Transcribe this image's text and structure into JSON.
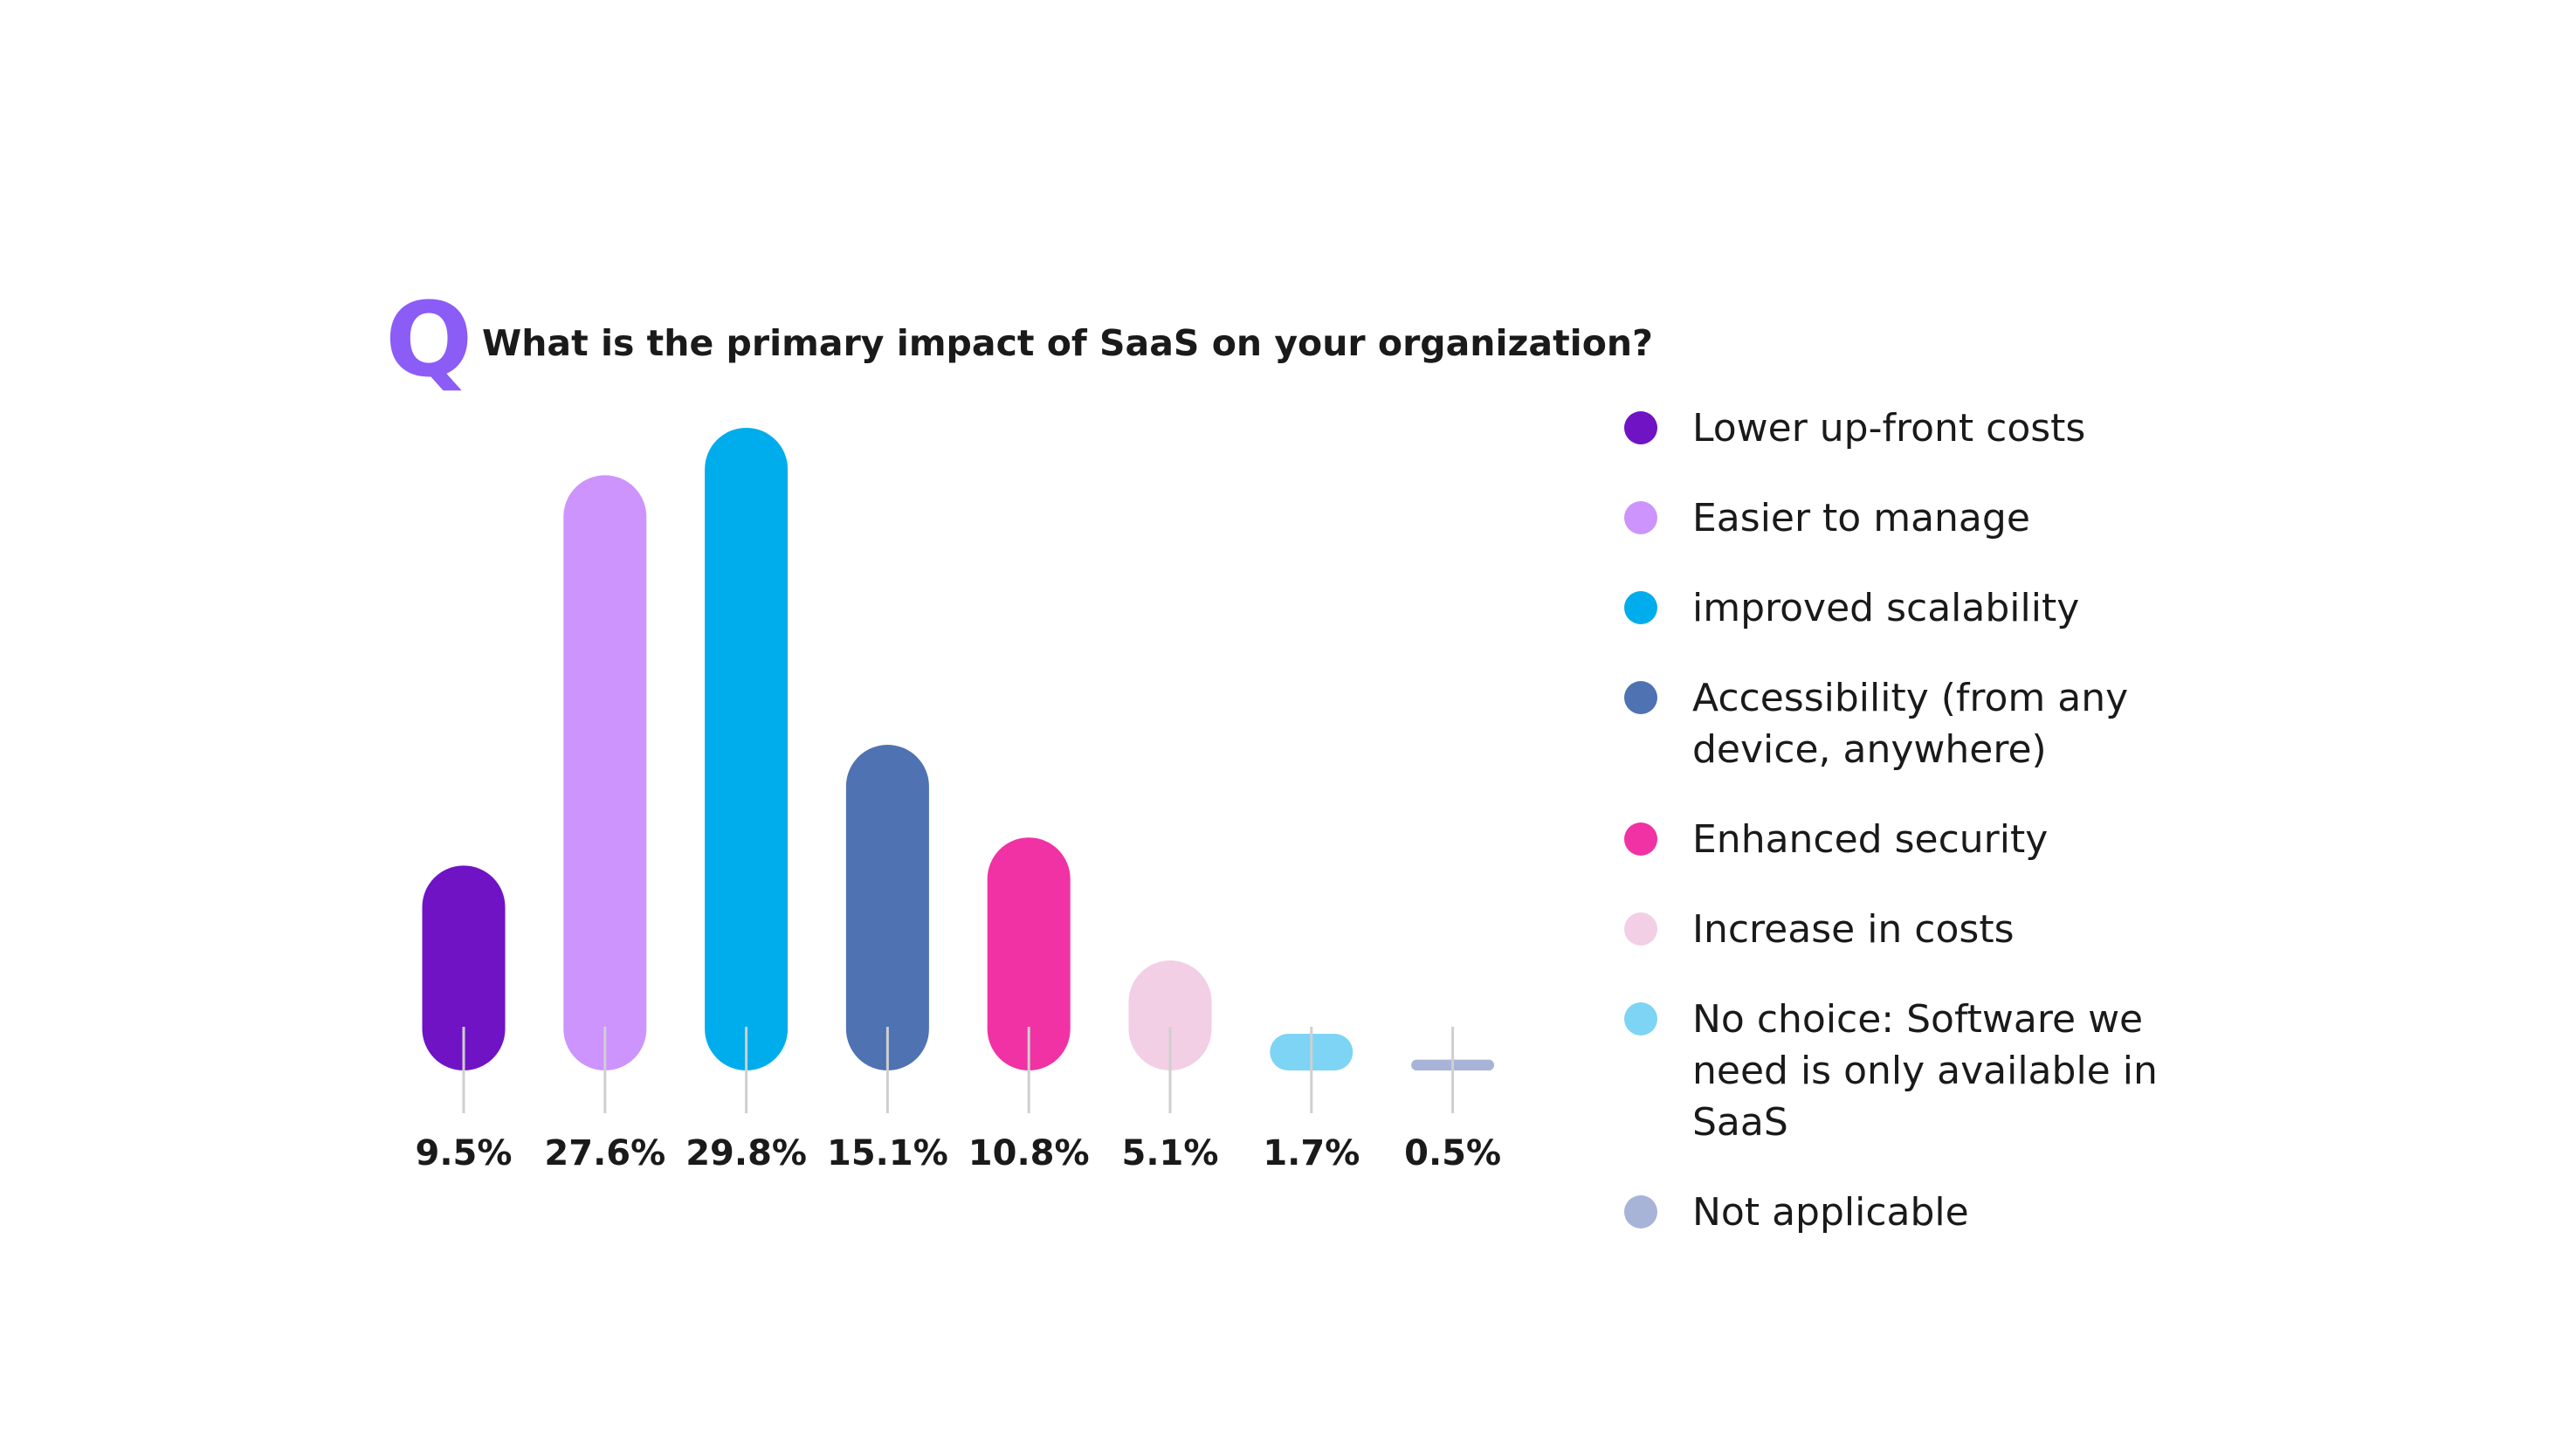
{
  "chart_data": {
    "type": "bar",
    "question_marker": "Q",
    "title": "What is the primary impact of SaaS on your organization?",
    "categories": [
      "Lower up-front costs",
      "Easier to manage",
      "improved scalability",
      "Accessibility (from any device, anywhere)",
      "Enhanced security",
      "Increase in costs",
      "No choice: Software we need is only available in SaaS",
      "Not applicable"
    ],
    "values": [
      9.5,
      27.6,
      29.8,
      15.1,
      10.8,
      5.1,
      1.7,
      0.5
    ],
    "value_labels": [
      "9.5%",
      "27.6%",
      "29.8%",
      "15.1%",
      "10.8%",
      "5.1%",
      "1.7%",
      "0.5%"
    ],
    "colors": [
      "#6f13c4",
      "#cc94fc",
      "#00adec",
      "#4f72b2",
      "#f032a4",
      "#f2cfe4",
      "#7dd4f5",
      "#a7b4d8"
    ]
  }
}
